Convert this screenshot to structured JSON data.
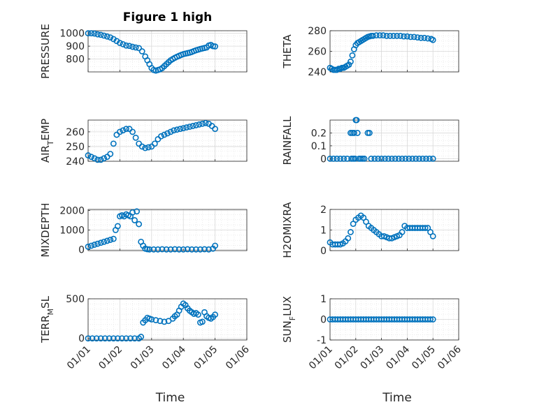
{
  "figure_title": "Figure 1 high",
  "x_label": "Time",
  "x_ticks": [
    "01/01",
    "01/02",
    "01/03",
    "01/04",
    "01/05",
    "01/06"
  ],
  "marker_color": "#0072bd",
  "chart_data": [
    {
      "type": "scatter",
      "title": "Figure 1 high",
      "ylabel": "PRESSURE",
      "xlim": [
        0,
        150
      ],
      "ylim": [
        700,
        1020
      ],
      "yticks": [
        "800",
        "900",
        "1000"
      ],
      "ytick_values": [
        800,
        900,
        1000
      ],
      "x_tick_labels_shown": false,
      "grid": true,
      "series": [
        {
          "x": [
            0,
            3,
            6,
            9,
            12,
            15,
            18,
            21,
            24,
            27,
            30,
            33,
            36,
            39,
            42,
            45,
            48,
            51,
            54,
            56,
            58,
            60,
            62,
            64,
            66,
            68,
            70,
            72,
            74,
            76,
            78,
            80,
            82,
            84,
            86,
            88,
            90,
            92,
            94,
            96,
            98,
            100,
            102,
            104,
            106,
            108,
            110,
            112,
            114,
            116,
            118,
            120
          ],
          "y": [
            1000,
            1000,
            998,
            992,
            988,
            982,
            975,
            968,
            955,
            940,
            925,
            915,
            905,
            902,
            895,
            890,
            885,
            860,
            820,
            790,
            760,
            730,
            715,
            710,
            715,
            720,
            730,
            745,
            760,
            775,
            790,
            800,
            810,
            818,
            825,
            832,
            838,
            842,
            846,
            850,
            855,
            862,
            868,
            873,
            878,
            882,
            886,
            890,
            905,
            910,
            900,
            898
          ]
        }
      ]
    },
    {
      "type": "scatter",
      "ylabel": "THETA",
      "xlim": [
        0,
        150
      ],
      "ylim": [
        240,
        280
      ],
      "yticks": [
        "240",
        "260",
        "280"
      ],
      "ytick_values": [
        240,
        260,
        280
      ],
      "x_tick_labels_shown": false,
      "grid": true,
      "series": [
        {
          "x": [
            0,
            2,
            4,
            6,
            8,
            10,
            12,
            14,
            16,
            18,
            20,
            22,
            24,
            26,
            28,
            30,
            32,
            34,
            36,
            38,
            40,
            42,
            44,
            46,
            48,
            50,
            54,
            58,
            62,
            66,
            70,
            74,
            78,
            82,
            86,
            90,
            94,
            98,
            102,
            106,
            110,
            114,
            118,
            120
          ],
          "y": [
            244,
            243,
            242,
            242,
            242,
            243,
            243,
            244,
            244,
            245,
            246,
            247,
            250,
            256,
            262,
            266,
            268,
            269,
            270,
            271,
            272,
            273,
            274,
            274.5,
            275,
            275,
            275.5,
            275.5,
            275.5,
            275,
            275,
            275,
            275,
            275,
            274.5,
            274.5,
            274,
            274,
            273.5,
            273,
            273,
            272.5,
            272,
            271
          ]
        }
      ]
    },
    {
      "type": "scatter",
      "ylabel": "AIR_TEMP",
      "xlim": [
        0,
        150
      ],
      "ylim": [
        240,
        268
      ],
      "yticks": [
        "240",
        "250",
        "260"
      ],
      "ytick_values": [
        240,
        250,
        260
      ],
      "x_tick_labels_shown": false,
      "grid": true,
      "series": [
        {
          "x": [
            0,
            3,
            6,
            9,
            12,
            15,
            18,
            21,
            24,
            27,
            30,
            33,
            36,
            39,
            42,
            45,
            48,
            51,
            54,
            57,
            60,
            63,
            66,
            69,
            72,
            75,
            78,
            81,
            84,
            87,
            90,
            93,
            96,
            99,
            102,
            105,
            108,
            111,
            114,
            117,
            120
          ],
          "y": [
            244,
            243,
            242,
            241,
            241,
            242,
            243,
            245,
            252,
            258,
            260,
            261,
            262,
            262,
            260,
            256,
            252,
            250,
            249,
            249.5,
            250,
            252,
            255,
            257,
            258,
            259,
            260,
            261,
            261.5,
            262,
            262.5,
            263,
            263.5,
            264,
            264.5,
            265,
            265.5,
            266,
            265.5,
            264,
            262
          ]
        }
      ]
    },
    {
      "type": "scatter",
      "ylabel": "RAINFALL",
      "xlim": [
        0,
        150
      ],
      "ylim": [
        -0.02,
        0.3
      ],
      "yticks": [
        "0",
        "0.1",
        "0.2"
      ],
      "ytick_values": [
        0,
        0.1,
        0.2
      ],
      "x_tick_labels_shown": false,
      "grid": true,
      "series": [
        {
          "x": [
            0,
            4,
            8,
            12,
            16,
            20,
            24,
            25,
            26,
            27,
            28,
            29,
            30,
            31,
            32,
            34,
            36,
            38,
            40,
            44,
            46,
            48,
            52,
            56,
            60,
            64,
            68,
            72,
            76,
            80,
            84,
            88,
            92,
            96,
            100,
            104,
            108,
            112,
            116,
            120
          ],
          "y": [
            0,
            0,
            0,
            0,
            0,
            0,
            0.2,
            0,
            0.2,
            0,
            0.2,
            0,
            0.3,
            0.3,
            0.2,
            0,
            0,
            0,
            0,
            0.2,
            0.2,
            0,
            0,
            0,
            0,
            0,
            0,
            0,
            0,
            0,
            0,
            0,
            0,
            0,
            0,
            0,
            0,
            0,
            0,
            0
          ]
        }
      ]
    },
    {
      "type": "scatter",
      "ylabel": "MIXDEPTH",
      "xlim": [
        0,
        150
      ],
      "ylim": [
        -50,
        2050
      ],
      "yticks": [
        "0",
        "1000",
        "2000"
      ],
      "ytick_values": [
        0,
        1000,
        2000
      ],
      "x_tick_labels_shown": false,
      "grid": true,
      "series": [
        {
          "x": [
            0,
            3,
            6,
            9,
            12,
            15,
            18,
            21,
            24,
            26,
            28,
            30,
            32,
            34,
            36,
            38,
            40,
            42,
            44,
            46,
            48,
            50,
            52,
            54,
            56,
            58,
            62,
            66,
            70,
            74,
            78,
            82,
            86,
            90,
            94,
            98,
            102,
            106,
            110,
            114,
            118,
            120
          ],
          "y": [
            150,
            200,
            250,
            300,
            350,
            400,
            450,
            500,
            550,
            1000,
            1200,
            1700,
            1750,
            1700,
            1800,
            1750,
            1700,
            1900,
            1500,
            1950,
            1300,
            400,
            200,
            50,
            20,
            10,
            10,
            10,
            20,
            10,
            10,
            20,
            10,
            10,
            20,
            10,
            10,
            10,
            20,
            10,
            50,
            200
          ]
        }
      ]
    },
    {
      "type": "scatter",
      "ylabel": "H2OMIXRA",
      "xlim": [
        0,
        150
      ],
      "ylim": [
        0,
        2
      ],
      "yticks": [
        "0",
        "1",
        "2"
      ],
      "ytick_values": [
        0,
        1,
        2
      ],
      "x_tick_labels_shown": false,
      "grid": true,
      "series": [
        {
          "x": [
            0,
            3,
            6,
            9,
            12,
            15,
            18,
            21,
            24,
            27,
            30,
            33,
            36,
            39,
            42,
            45,
            48,
            51,
            54,
            57,
            60,
            63,
            66,
            69,
            72,
            75,
            78,
            81,
            84,
            87,
            90,
            93,
            96,
            99,
            102,
            105,
            108,
            111,
            114,
            117,
            120
          ],
          "y": [
            0.4,
            0.3,
            0.3,
            0.3,
            0.3,
            0.35,
            0.45,
            0.6,
            0.9,
            1.3,
            1.5,
            1.6,
            1.7,
            1.6,
            1.4,
            1.2,
            1.1,
            1.0,
            0.9,
            0.8,
            0.7,
            0.7,
            0.65,
            0.6,
            0.6,
            0.65,
            0.7,
            0.75,
            0.9,
            1.2,
            1.1,
            1.1,
            1.1,
            1.1,
            1.1,
            1.1,
            1.1,
            1.1,
            1.1,
            0.9,
            0.7
          ]
        }
      ]
    },
    {
      "type": "scatter",
      "ylabel": "TERR_MSL",
      "xlim": [
        0,
        150
      ],
      "ylim": [
        -20,
        500
      ],
      "yticks": [
        "0",
        "500"
      ],
      "ytick_values": [
        0,
        500
      ],
      "x_tick_labels_shown": true,
      "grid": true,
      "series": [
        {
          "x": [
            0,
            4,
            8,
            12,
            16,
            20,
            24,
            28,
            32,
            36,
            40,
            44,
            48,
            50,
            52,
            54,
            56,
            58,
            60,
            64,
            68,
            72,
            76,
            80,
            82,
            84,
            86,
            88,
            90,
            92,
            94,
            96,
            98,
            100,
            102,
            104,
            106,
            108,
            110,
            112,
            114,
            116,
            118,
            120
          ],
          "y": [
            0,
            0,
            0,
            0,
            0,
            0,
            0,
            0,
            0,
            0,
            0,
            0,
            0,
            20,
            200,
            230,
            260,
            250,
            240,
            230,
            220,
            210,
            220,
            250,
            280,
            300,
            350,
            400,
            440,
            420,
            380,
            350,
            330,
            310,
            320,
            300,
            200,
            210,
            330,
            280,
            260,
            250,
            270,
            300
          ]
        }
      ]
    },
    {
      "type": "scatter",
      "ylabel": "SUN_FLUX",
      "xlim": [
        0,
        150
      ],
      "ylim": [
        -1,
        1
      ],
      "yticks": [
        "-1",
        "0",
        "1"
      ],
      "ytick_values": [
        -1,
        0,
        1
      ],
      "x_tick_labels_shown": true,
      "grid": true,
      "series": [
        {
          "x": [
            0,
            3,
            6,
            9,
            12,
            15,
            18,
            21,
            24,
            27,
            30,
            33,
            36,
            39,
            42,
            45,
            48,
            51,
            54,
            57,
            60,
            63,
            66,
            69,
            72,
            75,
            78,
            81,
            84,
            87,
            90,
            93,
            96,
            99,
            102,
            105,
            108,
            111,
            114,
            117,
            120
          ],
          "y": [
            0,
            0,
            0,
            0,
            0,
            0,
            0,
            0,
            0,
            0,
            0,
            0,
            0,
            0,
            0,
            0,
            0,
            0,
            0,
            0,
            0,
            0,
            0,
            0,
            0,
            0,
            0,
            0,
            0,
            0,
            0,
            0,
            0,
            0,
            0,
            0,
            0,
            0,
            0,
            0,
            0
          ]
        }
      ]
    }
  ]
}
